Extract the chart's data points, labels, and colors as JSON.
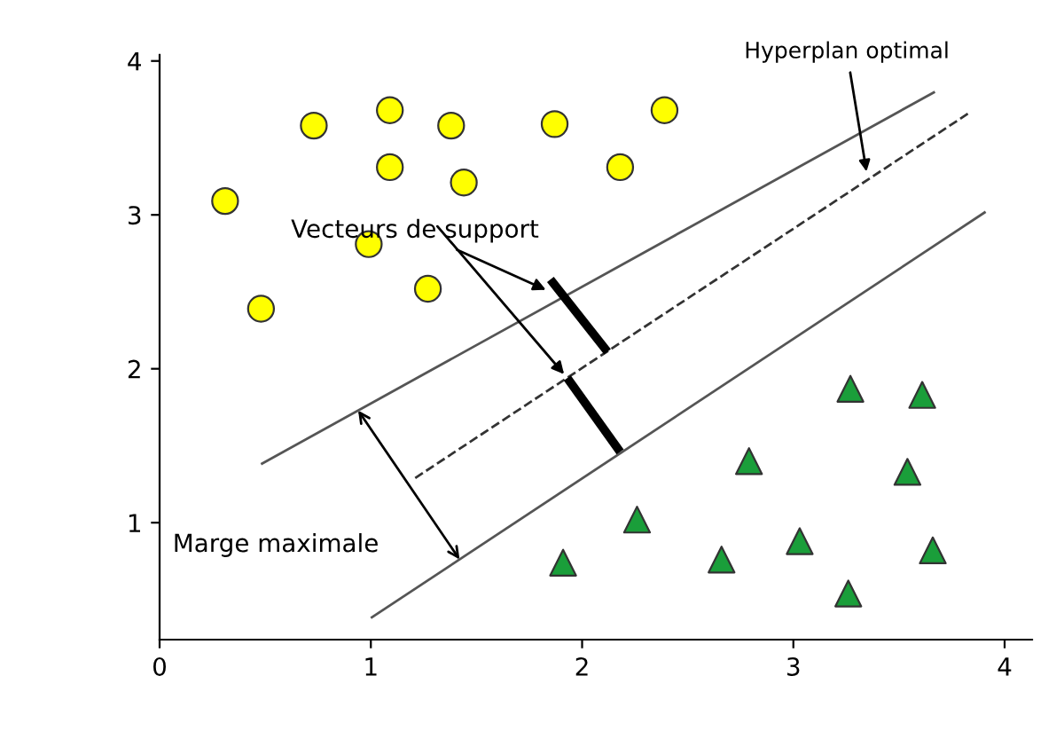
{
  "chart_data": {
    "type": "scatter",
    "series": [
      {
        "type": "scatter",
        "marker": "circle",
        "color": "#ffff00",
        "x": [
          0.73,
          1.09,
          1.38,
          1.87,
          2.39,
          1.09,
          1.44,
          2.18,
          0.31,
          0.99,
          1.27,
          0.48
        ],
        "values": [
          3.58,
          3.68,
          3.58,
          3.59,
          3.68,
          3.31,
          3.21,
          3.31,
          3.09,
          2.81,
          2.52,
          2.39
        ]
      },
      {
        "type": "scatter",
        "marker": "triangle",
        "color": "#1a9e3a",
        "x": [
          3.27,
          3.61,
          2.79,
          3.54,
          2.26,
          1.91,
          2.66,
          3.03,
          3.66,
          3.26
        ],
        "values": [
          1.87,
          1.83,
          1.4,
          1.33,
          1.02,
          0.74,
          0.76,
          0.88,
          0.82,
          0.54
        ]
      },
      {
        "type": "line",
        "line_style": "solid",
        "color": "#555555",
        "x": [
          0.48,
          3.67
        ],
        "values": [
          1.38,
          3.8
        ]
      },
      {
        "type": "line",
        "line_style": "dashed",
        "color": "#333333",
        "x": [
          1.21,
          3.84
        ],
        "values": [
          1.29,
          3.67
        ]
      },
      {
        "type": "line",
        "line_style": "solid",
        "color": "#555555",
        "x": [
          1.0,
          3.91
        ],
        "values": [
          0.38,
          3.02
        ]
      },
      {
        "type": "line",
        "line_style": "solid",
        "color": "#000000",
        "x": [
          1.85,
          2.12
        ],
        "values": [
          2.58,
          2.11
        ]
      },
      {
        "type": "line",
        "line_style": "solid",
        "color": "#000000",
        "x": [
          1.93,
          2.18
        ],
        "values": [
          1.94,
          1.46
        ]
      }
    ],
    "annotations": [
      {
        "text": "Hyperplan optimal",
        "x": 3.35,
        "y": 3.25
      },
      {
        "text": "Vecteurs de support",
        "x": 1.85,
        "y": 2.5
      },
      "Marge maximale"
    ],
    "xlim": [
      0,
      4.13
    ],
    "ylim": [
      0.24,
      4.04
    ],
    "xticks": [
      0,
      1,
      2,
      3,
      4
    ],
    "yticks": [
      1,
      2,
      3,
      4
    ],
    "grid": false,
    "legend": false
  }
}
